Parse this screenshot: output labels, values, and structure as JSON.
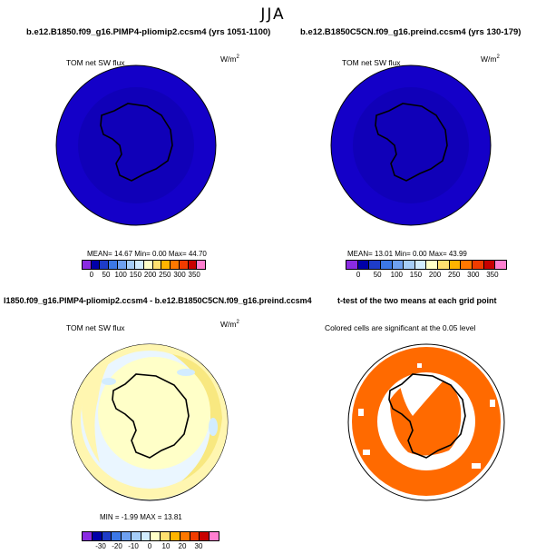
{
  "season": "JJA",
  "panels": [
    {
      "title": "b.e12.B1850.f09_g16.PIMP4-pliomip2.ccsm4 (yrs 1051-1100)",
      "var_label": "TOM net SW flux",
      "units": "W/m",
      "units_exp": "2",
      "stats": "MEAN=  14.67  Min=   0.00  Max=  44.70",
      "ticks": [
        "0",
        "50",
        "100",
        "150",
        "200",
        "250",
        "300",
        "350"
      ]
    },
    {
      "title": "b.e12.B1850C5CN.f09_g16.preind.ccsm4 (yrs 130-179)",
      "var_label": "TOM net SW flux",
      "units": "W/m",
      "units_exp": "2",
      "stats": "MEAN=  13.01  Min=   0.00  Max=  43.99",
      "ticks": [
        "0",
        "50",
        "100",
        "150",
        "200",
        "250",
        "300",
        "350"
      ]
    },
    {
      "title": "I1850.f09_g16.PIMP4-pliomip2.ccsm4 - b.e12.B1850C5CN.f09_g16.preind.ccsm4",
      "var_label": "TOM net SW flux",
      "units": "W/m",
      "units_exp": "2",
      "stats": "MIN =   -1.99  MAX =   13.81",
      "ticks": [
        "-30",
        "-20",
        "-10",
        "0",
        "10",
        "20",
        "30"
      ]
    },
    {
      "title": "t-test of the two means at each grid point",
      "var_label": "Colored cells are significant at the 0.05 level"
    }
  ],
  "colors": {
    "abs_scale": [
      "#8a2be2",
      "#0000a8",
      "#1e3cc8",
      "#3c78e6",
      "#6ea0f0",
      "#a6cdf8",
      "#d2ecff",
      "#ffffc8",
      "#ffe070",
      "#ffb400",
      "#ff7800",
      "#f03c00",
      "#c80000",
      "#ff7fd0"
    ],
    "diff_scale": [
      "#8a2be2",
      "#0000a8",
      "#1e3cc8",
      "#3c78e6",
      "#6ea0f0",
      "#a6cdf8",
      "#d2ecff",
      "#ffffc8",
      "#ffe070",
      "#ffb400",
      "#ff7800",
      "#f03c00",
      "#c80000",
      "#ff7fd0"
    ],
    "ocean_fill": "#1400c8",
    "diff_bg": "#eaf6ff",
    "diff_ring": "#fff6b0",
    "diff_warm": "#f8e880",
    "signif": "#ff6a00"
  }
}
